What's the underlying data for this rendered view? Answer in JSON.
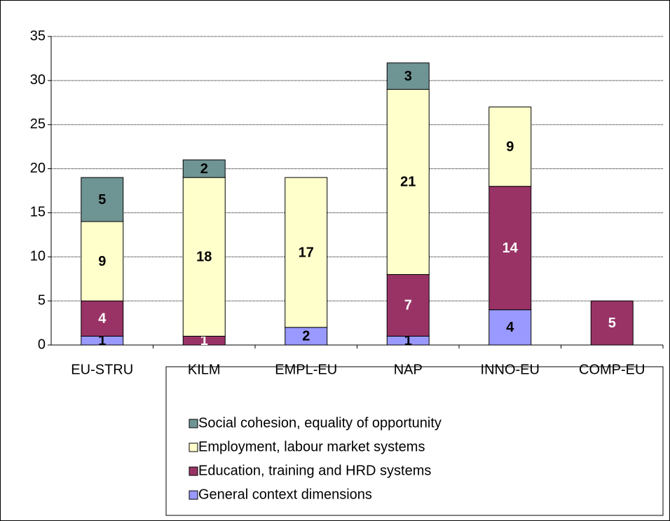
{
  "chart_data": {
    "type": "stacked_bar",
    "categories": [
      "EU-STRU",
      "KILM",
      "EMPL-EU",
      "NAP",
      "INNO-EU",
      "COMP-EU"
    ],
    "series": [
      {
        "name": "General context dimensions",
        "color": "#9999ff",
        "label_color": "#000000",
        "values": [
          1,
          null,
          2,
          1,
          4,
          null
        ]
      },
      {
        "name": "Education, training and HRD systems",
        "color": "#993366",
        "label_color": "#ffffff",
        "values": [
          4,
          1,
          null,
          7,
          14,
          5
        ]
      },
      {
        "name": "Employment, labour market systems",
        "color": "#ffffcc",
        "label_color": "#000000",
        "values": [
          9,
          18,
          17,
          21,
          9,
          null
        ]
      },
      {
        "name": "Social cohesion, equality of opportunity",
        "color": "#6f9494",
        "label_color": "#000000",
        "values": [
          5,
          2,
          null,
          3,
          null,
          null
        ]
      }
    ],
    "ylim": [
      0,
      35
    ],
    "yticks": [
      0,
      5,
      10,
      15,
      20,
      25,
      30,
      35
    ],
    "grid": true,
    "legend": "bottom"
  }
}
